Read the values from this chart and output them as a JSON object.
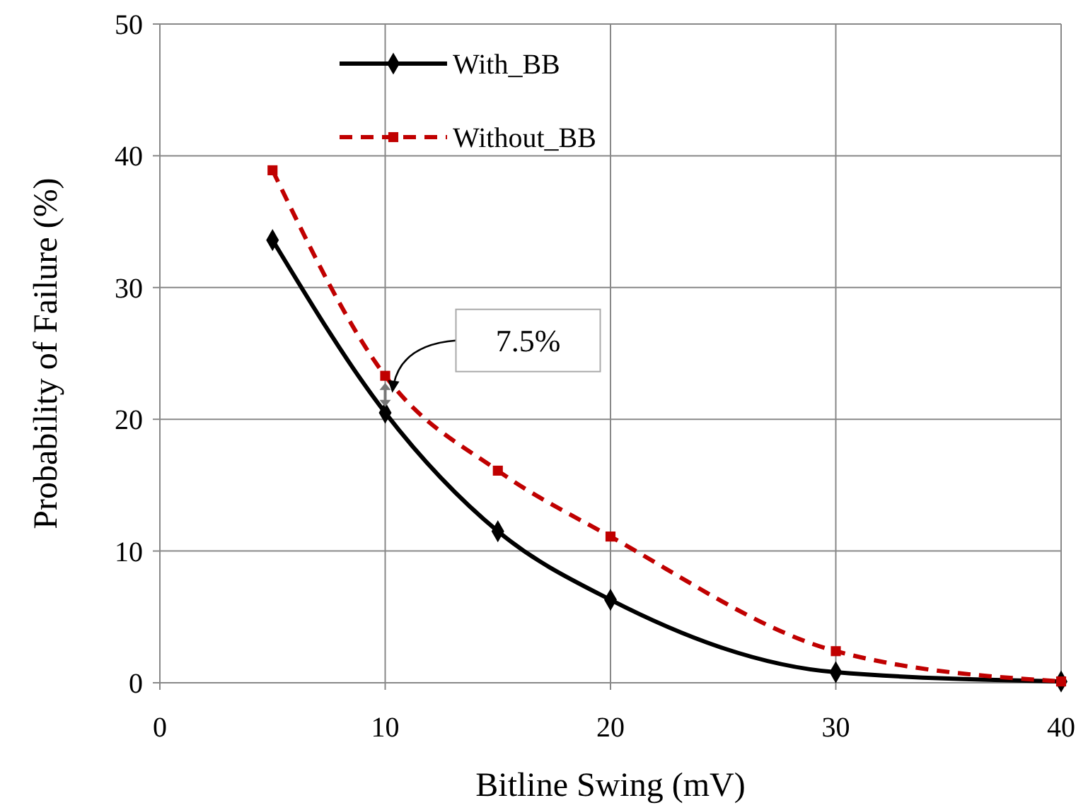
{
  "chart_data": {
    "type": "line",
    "xlabel": "Bitline Swing (mV)",
    "ylabel": "Probability of Failure  (%)",
    "x": [
      5,
      10,
      15,
      20,
      30,
      40
    ],
    "series": [
      {
        "name": "With_BB",
        "color": "#000000",
        "values": [
          33.6,
          20.5,
          11.5,
          6.3,
          0.8,
          0.1
        ],
        "marker": "diamond",
        "line_style": "solid"
      },
      {
        "name": "Without_BB",
        "color": "#c00000",
        "values": [
          38.9,
          23.3,
          16.1,
          11.1,
          2.4,
          0.1
        ],
        "marker": "square",
        "line_style": "dashed"
      }
    ],
    "xlim": [
      0,
      40
    ],
    "xticks": [
      0,
      10,
      20,
      30,
      40
    ],
    "ylim": [
      0,
      50
    ],
    "yticks": [
      0,
      10,
      20,
      30,
      40,
      50
    ],
    "grid": true,
    "legend": "top left",
    "annotations": [
      {
        "text": "7.5%",
        "x": 10,
        "y": 23.3
      }
    ]
  }
}
